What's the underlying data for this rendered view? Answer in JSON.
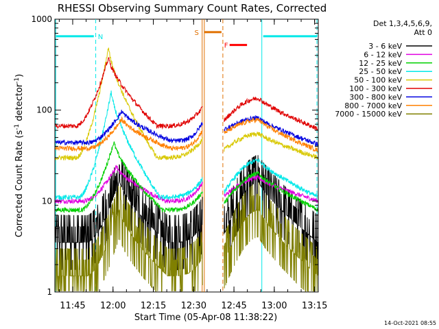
{
  "chart_data": {
    "type": "line",
    "title": "RHESSI Observing Summary Count Rates, Corrected",
    "xlabel": "Start Time (05-Apr-08 11:38:22)",
    "ylabel_parts": [
      "Corrected Count Rate (s",
      "-1",
      " detector",
      "-1",
      ")"
    ],
    "yscale": "log",
    "ylim": [
      1,
      1000
    ],
    "xlim_minutes": [
      0,
      98
    ],
    "x_ticks": [
      "11:45",
      "12:00",
      "12:15",
      "12:30",
      "12:45",
      "13:00",
      "13:15"
    ],
    "y_ticks": [
      "1",
      "10",
      "100",
      "1000"
    ],
    "legend_header": [
      "Det 1,3,4,5,6,9,",
      "Att 0"
    ],
    "footer": "14-Oct-2021 08:55",
    "gap_minutes": [
      55,
      62.5
    ],
    "series": [
      {
        "name": "3 - 6 keV",
        "color": "#000000",
        "peak_minute": 24,
        "values": [
          3.5,
          17,
          3.5,
          4,
          16,
          3.5
        ]
      },
      {
        "name": "6 - 12 keV",
        "color": "#e000e0",
        "peak_minute": 23,
        "values": [
          10,
          24,
          10,
          11,
          18,
          10
        ]
      },
      {
        "name": "12 - 25 keV",
        "color": "#00d000",
        "peak_minute": 22,
        "values": [
          8,
          45,
          8,
          9,
          20,
          8
        ]
      },
      {
        "name": "25 - 50 keV",
        "color": "#00e8e8",
        "peak_minute": 21,
        "values": [
          11,
          160,
          11,
          12,
          28,
          11
        ]
      },
      {
        "name": "50 - 100 keV",
        "color": "#d8c800",
        "peak_minute": 20,
        "values": [
          30,
          500,
          30,
          36,
          55,
          30
        ]
      },
      {
        "name": "100 - 300 keV",
        "color": "#e00000",
        "peak_minute": 20,
        "values": [
          67,
          380,
          67,
          75,
          135,
          62
        ]
      },
      {
        "name": "300 - 800 keV",
        "color": "#0000e0",
        "peak_minute": 25,
        "values": [
          44,
          98,
          46,
          60,
          82,
          42
        ]
      },
      {
        "name": "800 - 7000 keV",
        "color": "#ff8000",
        "peak_minute": 25,
        "values": [
          38,
          80,
          38,
          55,
          78,
          36
        ]
      },
      {
        "name": "7000 - 15000 keV",
        "color": "#808000",
        "peak_minute": 24,
        "values": [
          1.5,
          8,
          1.5,
          2,
          8,
          1.5
        ]
      }
    ],
    "annotations": [
      {
        "label": "N",
        "color": "#00e8e8",
        "start_minute": 0,
        "end_minute": 15,
        "level": 650
      },
      {
        "label": "S",
        "color": "#e07000",
        "start_minute": 55,
        "end_minute": 62.5,
        "level": 720
      },
      {
        "label": "F",
        "color": "#ff0000",
        "start_minute": 64.5,
        "end_minute": 72,
        "level": 520
      },
      {
        "label": "",
        "color": "#00e8e8",
        "start_minute": 77,
        "end_minute": 98,
        "level": 650
      }
    ],
    "vlines": [
      {
        "minute": 0.3,
        "color": "#00e8e8",
        "style": "solid"
      },
      {
        "minute": 15.2,
        "color": "#00e8e8",
        "style": "dashed"
      },
      {
        "minute": 54.8,
        "color": "#e07000",
        "style": "solid"
      },
      {
        "minute": 55.6,
        "color": "#e07000",
        "style": "solid"
      },
      {
        "minute": 62.5,
        "color": "#e07000",
        "style": "dashed"
      },
      {
        "minute": 77.0,
        "color": "#00e8e8",
        "style": "solid"
      },
      {
        "minute": 97.5,
        "color": "#00e8e8",
        "style": "dashed"
      }
    ]
  }
}
